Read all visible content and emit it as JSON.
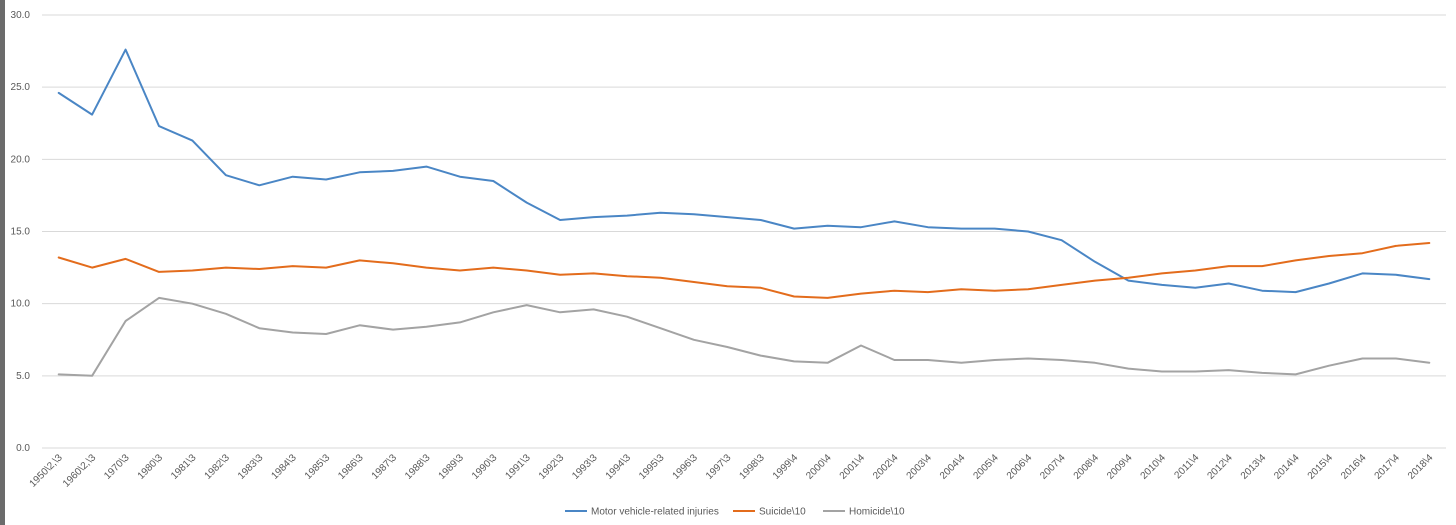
{
  "chart_data": {
    "type": "line",
    "title": "",
    "xlabel": "",
    "ylabel": "",
    "ylim": [
      0,
      30
    ],
    "yticks": [
      "0.0",
      "5.0",
      "10.0",
      "15.0",
      "20.0",
      "25.0",
      "30.0"
    ],
    "grid": true,
    "legend_position": "bottom",
    "categories": [
      "1950\\2,\\3",
      "1960\\2,\\3",
      "1970\\3",
      "1980\\3",
      "1981\\3",
      "1982\\3",
      "1983\\3",
      "1984\\3",
      "1985\\3",
      "1986\\3",
      "1987\\3",
      "1988\\3",
      "1989\\3",
      "1990\\3",
      "1991\\3",
      "1992\\3",
      "1993\\3",
      "1994\\3",
      "1995\\3",
      "1996\\3",
      "1997\\3",
      "1998\\3",
      "1999\\4",
      "2000\\4",
      "2001\\4",
      "2002\\4",
      "2003\\4",
      "2004\\4",
      "2005\\4",
      "2006\\4",
      "2007\\4",
      "2008\\4",
      "2009\\4",
      "2010\\4",
      "2011\\4",
      "2012\\4",
      "2013\\4",
      "2014\\4",
      "2015\\4",
      "2016\\4",
      "2017\\4",
      "2018\\4"
    ],
    "series": [
      {
        "name": "Motor vehicle-related injuries",
        "color": "#4a86c5",
        "values": [
          24.6,
          23.1,
          27.6,
          22.3,
          21.3,
          18.9,
          18.2,
          18.8,
          18.6,
          19.1,
          19.2,
          19.5,
          18.8,
          18.5,
          17.0,
          15.8,
          16.0,
          16.1,
          16.3,
          16.2,
          16.0,
          15.8,
          15.2,
          15.4,
          15.3,
          15.7,
          15.3,
          15.2,
          15.2,
          15.0,
          14.4,
          12.9,
          11.6,
          11.3,
          11.1,
          11.4,
          10.9,
          10.8,
          11.4,
          12.1,
          12.0,
          11.7
        ]
      },
      {
        "name": "Suicide\\10",
        "color": "#e36c1c",
        "values": [
          13.2,
          12.5,
          13.1,
          12.2,
          12.3,
          12.5,
          12.4,
          12.6,
          12.5,
          13.0,
          12.8,
          12.5,
          12.3,
          12.5,
          12.3,
          12.0,
          12.1,
          11.9,
          11.8,
          11.5,
          11.2,
          11.1,
          10.5,
          10.4,
          10.7,
          10.9,
          10.8,
          11.0,
          10.9,
          11.0,
          11.3,
          11.6,
          11.8,
          12.1,
          12.3,
          12.6,
          12.6,
          13.0,
          13.3,
          13.5,
          14.0,
          14.2
        ]
      },
      {
        "name": "Homicide\\10",
        "color": "#a3a3a3",
        "values": [
          5.1,
          5.0,
          8.8,
          10.4,
          10.0,
          9.3,
          8.3,
          8.0,
          7.9,
          8.5,
          8.2,
          8.4,
          8.7,
          9.4,
          9.9,
          9.4,
          9.6,
          9.1,
          8.3,
          7.5,
          7.0,
          6.4,
          6.0,
          5.9,
          7.1,
          6.1,
          6.1,
          5.9,
          6.1,
          6.2,
          6.1,
          5.9,
          5.5,
          5.3,
          5.3,
          5.4,
          5.2,
          5.1,
          5.7,
          6.2,
          6.2,
          5.9
        ]
      }
    ]
  }
}
